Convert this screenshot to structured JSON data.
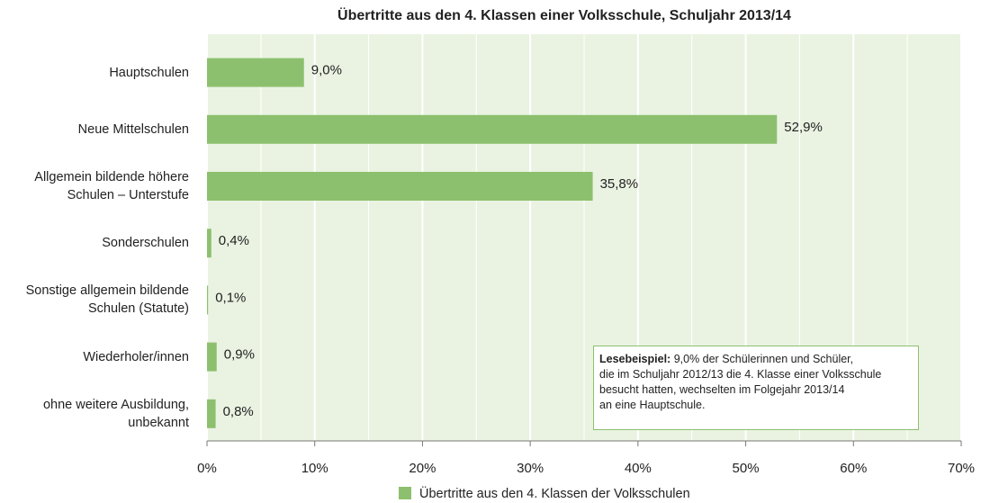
{
  "chart_data": {
    "type": "hbar",
    "title": "Übertritte aus den 4. Klassen einer Volksschule, Schuljahr 2013/14",
    "categories": [
      "Hauptschulen",
      "Neue Mittelschulen",
      "Allgemein bildende höhere\nSchulen – Unterstufe",
      "Sonderschulen",
      "Sonstige allgemein bildende\nSchulen (Statute)",
      "Wiederholer/innen",
      "ohne weitere Ausbildung,\nunbekannt"
    ],
    "series": [
      {
        "name": "Übertritte aus den 4. Klassen der Volksschulen",
        "color": "#8dc06e",
        "values": [
          9.0,
          52.9,
          35.8,
          0.4,
          0.1,
          0.9,
          0.8
        ],
        "value_labels": [
          "9,0%",
          "52,9%",
          "35,8%",
          "0,4%",
          "0,1%",
          "0,9%",
          "0,8%"
        ]
      }
    ],
    "xlim": [
      0,
      70
    ],
    "xticks": [
      {
        "value": 0,
        "label": "0%"
      },
      {
        "value": 10,
        "label": "10%"
      },
      {
        "value": 20,
        "label": "20%"
      },
      {
        "value": 30,
        "label": "30%"
      },
      {
        "value": 40,
        "label": "40%"
      },
      {
        "value": 50,
        "label": "50%"
      },
      {
        "value": 60,
        "label": "60%"
      },
      {
        "value": 70,
        "label": "70%"
      }
    ],
    "minor_xticks": [
      5,
      15,
      25,
      35,
      45,
      55,
      65
    ],
    "grid": true,
    "annotation": {
      "label": "Lesebeispiel:",
      "text": "9,0% der Schülerinnen und Schüler,\ndie im Schuljahr 2012/13 die 4. Klasse einer Volksschule\nbesucht hatten, wechselten im Folgejahr 2013/14\nan eine Hauptschule."
    }
  }
}
